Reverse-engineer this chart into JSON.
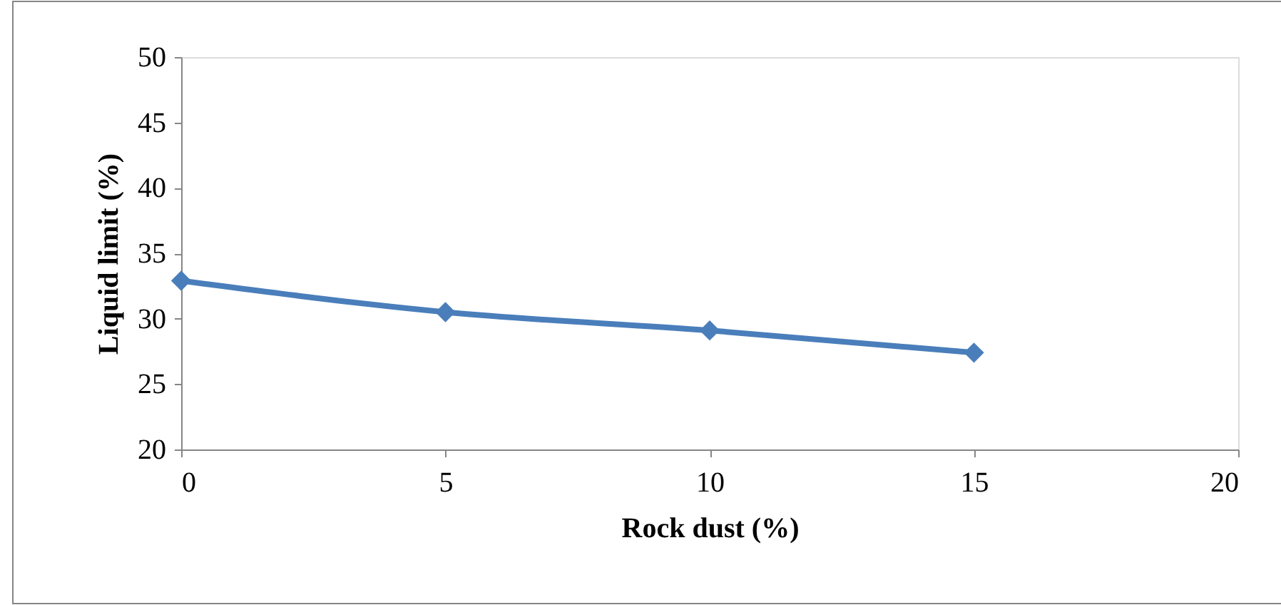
{
  "chart_data": {
    "type": "line",
    "xlabel": "Rock dust (%)",
    "ylabel": "Liquid limit (%)",
    "x": [
      0,
      5,
      10,
      15
    ],
    "series": [
      {
        "color": "#4a7ebb",
        "values": [
          32.9,
          30.5,
          29.1,
          27.4
        ]
      }
    ],
    "xlim": [
      0,
      20
    ],
    "xticks": [
      0,
      5,
      10,
      15,
      20
    ],
    "ylim": [
      20,
      50
    ],
    "yticks": [
      20,
      25,
      30,
      35,
      40,
      45,
      50
    ],
    "grid": false,
    "legend": false,
    "marker": "diamond",
    "line_style": "solid"
  }
}
